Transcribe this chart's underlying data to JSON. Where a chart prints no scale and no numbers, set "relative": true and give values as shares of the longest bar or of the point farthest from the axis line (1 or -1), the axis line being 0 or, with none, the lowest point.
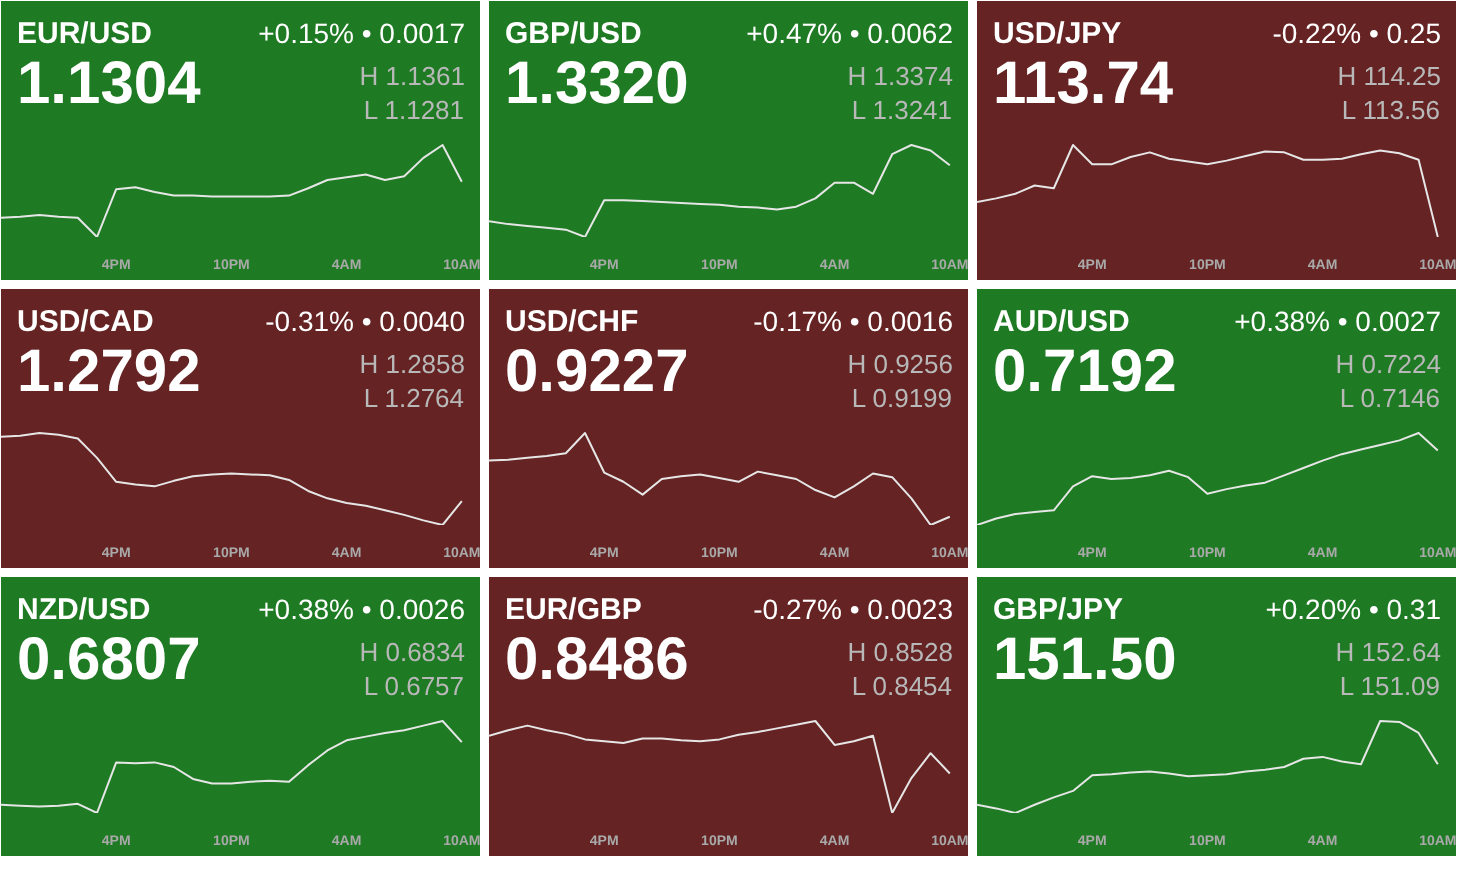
{
  "chart_data": [
    {
      "type": "line",
      "title": "EUR/USD",
      "relative": true,
      "categories": [
        null,
        null,
        null,
        null,
        null,
        null,
        "4PM",
        null,
        null,
        null,
        null,
        null,
        "10PM",
        null,
        null,
        null,
        null,
        null,
        "4AM",
        null,
        null,
        null,
        null,
        null,
        "10AM"
      ],
      "grid": false,
      "annotations": [
        "1.1304",
        "+0.15% • 0.0017",
        "H 1.1361",
        "L 1.1281"
      ],
      "series": [
        {
          "color": "#e6e6e6",
          "values": [
            0.21,
            0.22,
            0.24,
            0.22,
            0.21,
            0,
            0.52,
            0.54,
            0.49,
            0.45,
            0.45,
            0.44,
            0.44,
            0.44,
            0.44,
            0.45,
            0.53,
            0.62,
            0.65,
            0.68,
            0.62,
            0.66,
            0.86,
            1,
            0.6
          ]
        }
      ]
    },
    {
      "type": "line",
      "title": "GBP/USD",
      "relative": true,
      "categories": [
        null,
        null,
        null,
        null,
        null,
        null,
        "4PM",
        null,
        null,
        null,
        null,
        null,
        "10PM",
        null,
        null,
        null,
        null,
        null,
        "4AM",
        null,
        null,
        null,
        null,
        null,
        "10AM"
      ],
      "grid": false,
      "annotations": [
        "1.3320",
        "+0.47% • 0.0062",
        "H 1.3374",
        "L 1.3241"
      ],
      "series": [
        {
          "color": "#e6e6e6",
          "values": [
            0.17,
            0.14,
            0.12,
            0.1,
            0.08,
            0,
            0.4,
            0.4,
            0.39,
            0.38,
            0.37,
            0.36,
            0.35,
            0.33,
            0.32,
            0.3,
            0.33,
            0.42,
            0.59,
            0.59,
            0.47,
            0.9,
            1,
            0.94,
            0.78
          ]
        }
      ]
    },
    {
      "type": "line",
      "title": "USD/JPY",
      "relative": true,
      "categories": [
        null,
        null,
        null,
        null,
        null,
        null,
        "4PM",
        null,
        null,
        null,
        null,
        null,
        "10PM",
        null,
        null,
        null,
        null,
        null,
        "4AM",
        null,
        null,
        null,
        null,
        null,
        "10AM"
      ],
      "grid": false,
      "annotations": [
        "113.74",
        "-0.22% • 0.25",
        "H 114.25",
        "L 113.56"
      ],
      "series": [
        {
          "color": "#e6e6e6",
          "values": [
            0.38,
            0.42,
            0.47,
            0.56,
            0.53,
            1,
            0.79,
            0.79,
            0.87,
            0.92,
            0.85,
            0.82,
            0.79,
            0.83,
            0.88,
            0.93,
            0.92,
            0.84,
            0.84,
            0.85,
            0.9,
            0.94,
            0.91,
            0.84,
            0
          ]
        }
      ]
    },
    {
      "type": "line",
      "title": "USD/CAD",
      "relative": true,
      "categories": [
        null,
        null,
        null,
        null,
        null,
        null,
        "4PM",
        null,
        null,
        null,
        null,
        null,
        "10PM",
        null,
        null,
        null,
        null,
        null,
        "4AM",
        null,
        null,
        null,
        null,
        null,
        "10AM"
      ],
      "grid": false,
      "annotations": [
        "1.2792",
        "-0.31% • 0.0040",
        "H 1.2858",
        "L 1.2764"
      ],
      "series": [
        {
          "color": "#e6e6e6",
          "values": [
            0.96,
            0.97,
            1,
            0.98,
            0.94,
            0.73,
            0.47,
            0.44,
            0.42,
            0.48,
            0.53,
            0.55,
            0.56,
            0.55,
            0.54,
            0.49,
            0.37,
            0.29,
            0.24,
            0.21,
            0.16,
            0.11,
            0.05,
            0,
            0.26
          ]
        }
      ]
    },
    {
      "type": "line",
      "title": "USD/CHF",
      "relative": true,
      "categories": [
        null,
        null,
        null,
        null,
        null,
        null,
        "4PM",
        null,
        null,
        null,
        null,
        null,
        "10PM",
        null,
        null,
        null,
        null,
        null,
        "4AM",
        null,
        null,
        null,
        null,
        null,
        "10AM"
      ],
      "grid": false,
      "annotations": [
        "0.9227",
        "-0.17% • 0.0016",
        "H 0.9256",
        "L 0.9199"
      ],
      "series": [
        {
          "color": "#e6e6e6",
          "values": [
            0.7,
            0.71,
            0.73,
            0.75,
            0.78,
            1,
            0.57,
            0.47,
            0.33,
            0.5,
            0.53,
            0.55,
            0.51,
            0.47,
            0.58,
            0.54,
            0.5,
            0.38,
            0.3,
            0.42,
            0.56,
            0.52,
            0.29,
            0,
            0.09
          ]
        }
      ]
    },
    {
      "type": "line",
      "title": "AUD/USD",
      "relative": true,
      "categories": [
        null,
        null,
        null,
        null,
        null,
        null,
        "4PM",
        null,
        null,
        null,
        null,
        null,
        "10PM",
        null,
        null,
        null,
        null,
        null,
        "4AM",
        null,
        null,
        null,
        null,
        null,
        "10AM"
      ],
      "grid": false,
      "annotations": [
        "0.7192",
        "+0.38% • 0.0027",
        "H 0.7224",
        "L 0.7146"
      ],
      "series": [
        {
          "color": "#e6e6e6",
          "values": [
            0,
            0.07,
            0.12,
            0.14,
            0.16,
            0.42,
            0.53,
            0.5,
            0.51,
            0.54,
            0.59,
            0.52,
            0.34,
            0.39,
            0.43,
            0.46,
            0.54,
            0.62,
            0.7,
            0.77,
            0.82,
            0.87,
            0.92,
            1,
            0.81
          ]
        }
      ]
    },
    {
      "type": "line",
      "title": "NZD/USD",
      "relative": true,
      "categories": [
        null,
        null,
        null,
        null,
        null,
        null,
        "4PM",
        null,
        null,
        null,
        null,
        null,
        "10PM",
        null,
        null,
        null,
        null,
        null,
        "4AM",
        null,
        null,
        null,
        null,
        null,
        "10AM"
      ],
      "grid": false,
      "annotations": [
        "0.6807",
        "+0.38% • 0.0026",
        "H 0.6834",
        "L 0.6757"
      ],
      "series": [
        {
          "color": "#e6e6e6",
          "values": [
            0.09,
            0.08,
            0.07,
            0.08,
            0.1,
            0,
            0.55,
            0.54,
            0.55,
            0.5,
            0.37,
            0.32,
            0.32,
            0.34,
            0.35,
            0.34,
            0.52,
            0.68,
            0.79,
            0.83,
            0.87,
            0.9,
            0.95,
            1,
            0.77
          ]
        }
      ]
    },
    {
      "type": "line",
      "title": "EUR/GBP",
      "relative": true,
      "categories": [
        null,
        null,
        null,
        null,
        null,
        null,
        "4PM",
        null,
        null,
        null,
        null,
        null,
        "10PM",
        null,
        null,
        null,
        null,
        null,
        "4AM",
        null,
        null,
        null,
        null,
        null,
        "10AM"
      ],
      "grid": false,
      "annotations": [
        "0.8486",
        "-0.27% • 0.0023",
        "H 0.8528",
        "L 0.8454"
      ],
      "series": [
        {
          "color": "#e6e6e6",
          "values": [
            0.84,
            0.9,
            0.95,
            0.9,
            0.86,
            0.8,
            0.78,
            0.76,
            0.81,
            0.81,
            0.79,
            0.78,
            0.8,
            0.85,
            0.88,
            0.92,
            0.96,
            1,
            0.74,
            0.78,
            0.84,
            0,
            0.38,
            0.65,
            0.43
          ]
        }
      ]
    },
    {
      "type": "line",
      "title": "GBP/JPY",
      "relative": true,
      "categories": [
        null,
        null,
        null,
        null,
        null,
        null,
        "4PM",
        null,
        null,
        null,
        null,
        null,
        "10PM",
        null,
        null,
        null,
        null,
        null,
        "4AM",
        null,
        null,
        null,
        null,
        null,
        "10AM"
      ],
      "grid": false,
      "annotations": [
        "151.50",
        "+0.20% • 0.31",
        "H 152.64",
        "L 151.09"
      ],
      "series": [
        {
          "color": "#e6e6e6",
          "values": [
            0.09,
            0.05,
            0,
            0.09,
            0.17,
            0.24,
            0.41,
            0.42,
            0.44,
            0.45,
            0.43,
            0.4,
            0.41,
            0.42,
            0.45,
            0.47,
            0.5,
            0.59,
            0.61,
            0.56,
            0.53,
            1,
            0.99,
            0.87,
            0.53
          ]
        }
      ]
    }
  ]
}
